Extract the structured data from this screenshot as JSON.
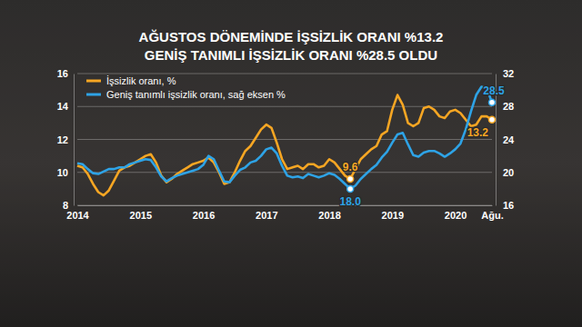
{
  "chart_data": {
    "type": "line",
    "title": [
      "AĞUSTOS DÖNEMİNDE İŞSİZLİK ORANI %13.2",
      "GENİŞ TANIMLI İŞSİZLİK ORANI %28.5 OLDU"
    ],
    "categories": [
      "2014",
      null,
      null,
      null,
      null,
      null,
      null,
      null,
      null,
      null,
      null,
      null,
      "2015",
      null,
      null,
      null,
      null,
      null,
      null,
      null,
      null,
      null,
      null,
      null,
      "2016",
      null,
      null,
      null,
      null,
      null,
      null,
      null,
      null,
      null,
      null,
      null,
      "2017",
      null,
      null,
      null,
      null,
      null,
      null,
      null,
      null,
      null,
      null,
      null,
      "2018",
      null,
      null,
      null,
      null,
      null,
      null,
      null,
      null,
      null,
      null,
      null,
      "2019",
      null,
      null,
      null,
      null,
      null,
      null,
      null,
      null,
      null,
      null,
      null,
      "2020",
      null,
      null,
      null,
      null,
      null,
      null,
      "Ağu."
    ],
    "series": [
      {
        "name": "İşsizlik oranı, %",
        "color": "#f6a623",
        "values": [
          10.4,
          10.3,
          9.9,
          9.3,
          8.8,
          8.6,
          8.9,
          9.5,
          10.1,
          10.3,
          10.4,
          10.6,
          10.8,
          11.0,
          11.1,
          10.6,
          9.8,
          9.4,
          9.6,
          9.9,
          10.1,
          10.3,
          10.5,
          10.6,
          10.7,
          10.9,
          10.6,
          10.0,
          9.3,
          9.4,
          10.0,
          10.7,
          11.3,
          11.6,
          12.1,
          12.6,
          12.9,
          12.7,
          11.8,
          10.8,
          10.2,
          10.3,
          10.4,
          10.2,
          10.5,
          10.5,
          10.3,
          10.4,
          10.8,
          10.6,
          10.2,
          9.8,
          9.6,
          10.2,
          10.8,
          11.1,
          11.4,
          11.6,
          12.3,
          12.5,
          13.8,
          14.7,
          14.1,
          13.0,
          12.8,
          13.0,
          13.9,
          14.0,
          13.8,
          13.4,
          13.3,
          13.7,
          13.8,
          13.6,
          13.2,
          12.8,
          12.9,
          13.4,
          13.4,
          13.2
        ],
        "value_labels": [
          null,
          null,
          null,
          null,
          null,
          null,
          null,
          null,
          null,
          null,
          null,
          null,
          null,
          null,
          null,
          null,
          null,
          null,
          null,
          null,
          null,
          null,
          null,
          null,
          null,
          null,
          null,
          null,
          null,
          null,
          null,
          null,
          null,
          null,
          null,
          null,
          null,
          null,
          null,
          null,
          null,
          null,
          null,
          null,
          null,
          null,
          null,
          null,
          null,
          null,
          null,
          null,
          "9.6",
          null,
          null,
          null,
          null,
          null,
          null,
          null,
          null,
          null,
          null,
          null,
          null,
          null,
          null,
          null,
          null,
          null,
          null,
          null,
          null,
          null,
          null,
          null,
          null,
          null,
          null,
          "13.2"
        ]
      },
      {
        "name": "Geniş tanımlı işsizlik oranı, sağ eksen %",
        "color": "#2ea3e6",
        "axis": "y2",
        "values": [
          21.1,
          21.0,
          20.4,
          19.9,
          19.8,
          20.1,
          20.4,
          20.4,
          20.6,
          20.6,
          21.0,
          21.2,
          21.4,
          21.6,
          21.5,
          20.6,
          19.5,
          18.9,
          19.3,
          19.6,
          19.8,
          20.0,
          20.2,
          20.4,
          20.9,
          22.0,
          21.6,
          20.2,
          18.9,
          18.8,
          19.6,
          20.3,
          20.6,
          21.2,
          21.4,
          22.0,
          22.8,
          23.0,
          22.3,
          20.8,
          19.6,
          19.4,
          19.5,
          19.3,
          19.8,
          19.6,
          19.4,
          19.6,
          19.9,
          19.7,
          19.2,
          18.6,
          18.0,
          18.4,
          19.2,
          19.8,
          20.4,
          20.9,
          21.8,
          22.5,
          23.6,
          24.6,
          24.8,
          23.4,
          22.1,
          21.9,
          22.4,
          22.6,
          22.6,
          22.3,
          21.9,
          22.3,
          22.8,
          23.5,
          25.2,
          27.4,
          29.4,
          30.4,
          30.2,
          28.5
        ],
        "value_labels": [
          null,
          null,
          null,
          null,
          null,
          null,
          null,
          null,
          null,
          null,
          null,
          null,
          null,
          null,
          null,
          null,
          null,
          null,
          null,
          null,
          null,
          null,
          null,
          null,
          null,
          null,
          null,
          null,
          null,
          null,
          null,
          null,
          null,
          null,
          null,
          null,
          null,
          null,
          null,
          null,
          null,
          null,
          null,
          null,
          null,
          null,
          null,
          null,
          null,
          null,
          null,
          null,
          "18.0",
          null,
          null,
          null,
          null,
          null,
          null,
          null,
          null,
          null,
          null,
          null,
          null,
          null,
          null,
          null,
          null,
          null,
          null,
          null,
          null,
          null,
          null,
          null,
          null,
          null,
          null,
          "28.5"
        ]
      }
    ],
    "ylim": [
      8,
      16
    ],
    "yticks": [
      8,
      10,
      12,
      14,
      16
    ],
    "y2lim": [
      16,
      32
    ],
    "y2ticks": [
      16,
      20,
      24,
      28,
      32
    ],
    "grid": true,
    "legend": "top-left"
  }
}
